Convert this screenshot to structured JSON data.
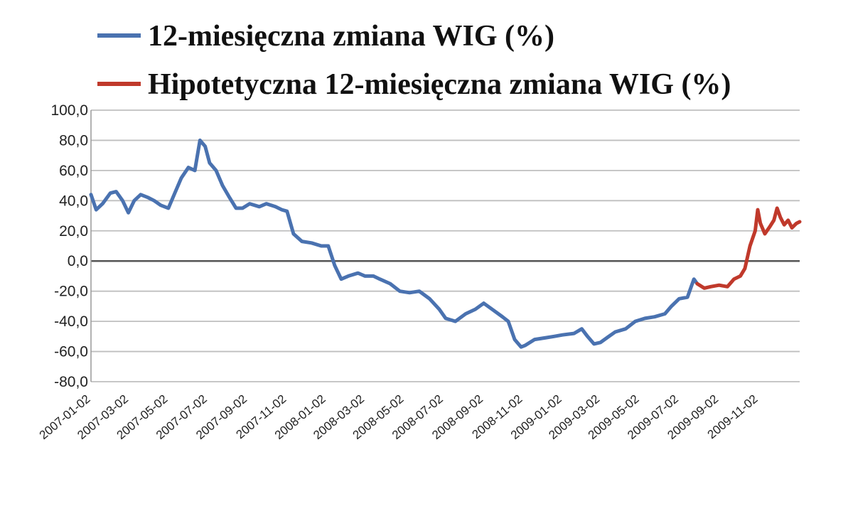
{
  "chart_data": {
    "type": "line",
    "title": "",
    "xlabel": "",
    "ylabel": "",
    "ylim": [
      -80,
      100
    ],
    "y_ticks": [
      "100,0",
      "80,0",
      "60,0",
      "40,0",
      "20,0",
      "0,0",
      "-20,0",
      "-40,0",
      "-60,0",
      "-80,0"
    ],
    "y_tick_values": [
      100,
      80,
      60,
      40,
      20,
      0,
      -20,
      -40,
      -60,
      -80
    ],
    "x_ticks": [
      "2007-01-02",
      "2007-03-02",
      "2007-05-02",
      "2007-07-02",
      "2007-09-02",
      "2007-11-02",
      "2008-01-02",
      "2008-03-02",
      "2008-05-02",
      "2008-07-02",
      "2008-09-02",
      "2008-11-02",
      "2009-01-02",
      "2009-03-02",
      "2009-05-02",
      "2009-07-02",
      "2009-09-02",
      "2009-11-02"
    ],
    "grid": true,
    "legend_position": "top",
    "colors": {
      "blue": "#4a72b0",
      "red": "#c0392b",
      "grid": "#bfbfbf",
      "zero": "#555555"
    },
    "series": [
      {
        "name": "12-miesięczna zmiana WIG (%)",
        "color": "#4a72b0",
        "points": [
          [
            "2007-01-02",
            44
          ],
          [
            "2007-01-10",
            34
          ],
          [
            "2007-01-20",
            38
          ],
          [
            "2007-02-01",
            45
          ],
          [
            "2007-02-10",
            46
          ],
          [
            "2007-02-20",
            40
          ],
          [
            "2007-03-01",
            32
          ],
          [
            "2007-03-10",
            40
          ],
          [
            "2007-03-20",
            44
          ],
          [
            "2007-04-01",
            42
          ],
          [
            "2007-04-10",
            40
          ],
          [
            "2007-04-20",
            37
          ],
          [
            "2007-05-02",
            35
          ],
          [
            "2007-05-12",
            45
          ],
          [
            "2007-05-22",
            55
          ],
          [
            "2007-06-02",
            62
          ],
          [
            "2007-06-12",
            60
          ],
          [
            "2007-06-20",
            80
          ],
          [
            "2007-06-28",
            76
          ],
          [
            "2007-07-05",
            65
          ],
          [
            "2007-07-15",
            60
          ],
          [
            "2007-07-25",
            50
          ],
          [
            "2007-08-05",
            42
          ],
          [
            "2007-08-15",
            35
          ],
          [
            "2007-08-25",
            35
          ],
          [
            "2007-09-05",
            38
          ],
          [
            "2007-09-20",
            36
          ],
          [
            "2007-10-01",
            38
          ],
          [
            "2007-10-15",
            36
          ],
          [
            "2007-10-25",
            34
          ],
          [
            "2007-11-02",
            33
          ],
          [
            "2007-11-12",
            18
          ],
          [
            "2007-11-25",
            13
          ],
          [
            "2007-12-10",
            12
          ],
          [
            "2007-12-25",
            10
          ],
          [
            "2008-01-05",
            10
          ],
          [
            "2008-01-15",
            -3
          ],
          [
            "2008-01-25",
            -12
          ],
          [
            "2008-02-05",
            -10
          ],
          [
            "2008-02-20",
            -8
          ],
          [
            "2008-03-02",
            -10
          ],
          [
            "2008-03-15",
            -10
          ],
          [
            "2008-03-25",
            -12
          ],
          [
            "2008-04-10",
            -15
          ],
          [
            "2008-04-25",
            -20
          ],
          [
            "2008-05-10",
            -21
          ],
          [
            "2008-05-25",
            -20
          ],
          [
            "2008-06-10",
            -25
          ],
          [
            "2008-06-25",
            -32
          ],
          [
            "2008-07-05",
            -38
          ],
          [
            "2008-07-20",
            -40
          ],
          [
            "2008-08-05",
            -35
          ],
          [
            "2008-08-20",
            -32
          ],
          [
            "2008-09-02",
            -28
          ],
          [
            "2008-09-15",
            -32
          ],
          [
            "2008-10-01",
            -37
          ],
          [
            "2008-10-10",
            -40
          ],
          [
            "2008-10-20",
            -52
          ],
          [
            "2008-10-30",
            -57
          ],
          [
            "2008-11-05",
            -56
          ],
          [
            "2008-11-20",
            -52
          ],
          [
            "2008-12-05",
            -51
          ],
          [
            "2008-12-20",
            -50
          ],
          [
            "2009-01-02",
            -49
          ],
          [
            "2009-01-20",
            -48
          ],
          [
            "2009-02-01",
            -45
          ],
          [
            "2009-02-10",
            -50
          ],
          [
            "2009-02-20",
            -55
          ],
          [
            "2009-03-02",
            -54
          ],
          [
            "2009-03-15",
            -50
          ],
          [
            "2009-03-25",
            -47
          ],
          [
            "2009-04-10",
            -45
          ],
          [
            "2009-04-25",
            -40
          ],
          [
            "2009-05-10",
            -38
          ],
          [
            "2009-05-25",
            -37
          ],
          [
            "2009-06-10",
            -35
          ],
          [
            "2009-06-20",
            -30
          ],
          [
            "2009-07-02",
            -25
          ],
          [
            "2009-07-15",
            -24
          ],
          [
            "2009-07-25",
            -12
          ],
          [
            "2009-07-30",
            -15
          ]
        ]
      },
      {
        "name": "Hipotetyczna 12-miesięczna zmiana WIG (%)",
        "color": "#c0392b",
        "points": [
          [
            "2009-07-30",
            -15
          ],
          [
            "2009-08-10",
            -18
          ],
          [
            "2009-08-20",
            -17
          ],
          [
            "2009-09-02",
            -16
          ],
          [
            "2009-09-15",
            -17
          ],
          [
            "2009-09-25",
            -12
          ],
          [
            "2009-10-05",
            -10
          ],
          [
            "2009-10-12",
            -5
          ],
          [
            "2009-10-20",
            10
          ],
          [
            "2009-10-28",
            20
          ],
          [
            "2009-11-01",
            34
          ],
          [
            "2009-11-05",
            25
          ],
          [
            "2009-11-12",
            18
          ],
          [
            "2009-11-20",
            23
          ],
          [
            "2009-11-26",
            27
          ],
          [
            "2009-12-01",
            35
          ],
          [
            "2009-12-06",
            29
          ],
          [
            "2009-12-12",
            24
          ],
          [
            "2009-12-18",
            27
          ],
          [
            "2009-12-24",
            22
          ],
          [
            "2009-12-31",
            25
          ],
          [
            "2010-01-05",
            26
          ]
        ]
      }
    ]
  }
}
